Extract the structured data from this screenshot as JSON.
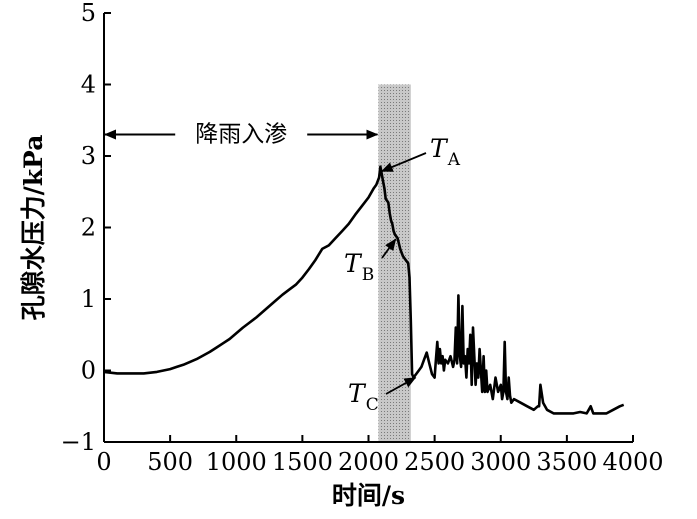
{
  "chart_data": {
    "type": "line",
    "xlabel": "时间/s",
    "ylabel": "孔隙水压力/kPa",
    "xlim": [
      0,
      4000
    ],
    "ylim": [
      -1,
      5
    ],
    "xticks": [
      0,
      500,
      1000,
      1500,
      2000,
      2500,
      3000,
      3500,
      4000
    ],
    "yticks": [
      -1,
      0,
      1,
      2,
      3,
      4,
      5
    ],
    "grid": false,
    "shaded_band": {
      "x": [
        2075,
        2320
      ],
      "color": "#b4b4b4"
    },
    "annotations": {
      "rain_label": "降雨入渗",
      "rain_span": [
        0,
        2075,
        3.3
      ]
    },
    "markers": [
      {
        "main": "T",
        "sub": "A",
        "x": 2085,
        "y": 2.8
      },
      {
        "main": "T",
        "sub": "B",
        "x": 2190,
        "y": 1.85
      },
      {
        "main": "T",
        "sub": "C",
        "x": 2340,
        "y": -0.1
      }
    ],
    "series": [
      {
        "color": "#000000",
        "x": [
          0,
          100,
          200,
          300,
          400,
          500,
          550,
          600,
          650,
          700,
          750,
          800,
          850,
          900,
          950,
          1000,
          1050,
          1100,
          1150,
          1200,
          1250,
          1300,
          1350,
          1400,
          1450,
          1500,
          1550,
          1600,
          1650,
          1700,
          1750,
          1800,
          1850,
          1900,
          1950,
          2000,
          2040,
          2060,
          2080,
          2090,
          2100,
          2110,
          2120,
          2130,
          2150,
          2160,
          2170,
          2180,
          2190,
          2200,
          2220,
          2240,
          2260,
          2280,
          2300,
          2310,
          2320,
          2330,
          2340,
          2360,
          2380,
          2400,
          2420,
          2440,
          2460,
          2480,
          2500,
          2510,
          2520,
          2530,
          2540,
          2550,
          2560,
          2570,
          2580,
          2600,
          2620,
          2640,
          2650,
          2660,
          2670,
          2680,
          2690,
          2700,
          2710,
          2720,
          2730,
          2740,
          2750,
          2760,
          2770,
          2780,
          2790,
          2800,
          2810,
          2820,
          2830,
          2840,
          2850,
          2860,
          2870,
          2880,
          2890,
          2900,
          2920,
          2940,
          2960,
          2980,
          3000,
          3010,
          3020,
          3030,
          3040,
          3050,
          3060,
          3070,
          3080,
          3100,
          3150,
          3200,
          3250,
          3280,
          3290,
          3300,
          3320,
          3350,
          3400,
          3450,
          3500,
          3550,
          3600,
          3650,
          3680,
          3700,
          3750,
          3800,
          3850,
          3900,
          3930
        ],
        "y": [
          -0.02,
          -0.04,
          -0.04,
          -0.04,
          -0.02,
          0.02,
          0.05,
          0.08,
          0.12,
          0.16,
          0.21,
          0.26,
          0.32,
          0.38,
          0.44,
          0.52,
          0.6,
          0.67,
          0.74,
          0.82,
          0.9,
          0.98,
          1.06,
          1.13,
          1.2,
          1.3,
          1.42,
          1.55,
          1.7,
          1.75,
          1.85,
          1.95,
          2.05,
          2.18,
          2.3,
          2.42,
          2.55,
          2.6,
          2.7,
          2.85,
          2.75,
          2.65,
          2.55,
          2.4,
          2.35,
          2.2,
          2.1,
          2.05,
          1.95,
          1.9,
          1.85,
          1.7,
          1.6,
          1.55,
          1.5,
          1.3,
          0.7,
          -0.05,
          -0.1,
          -0.05,
          0.0,
          0.05,
          0.15,
          0.25,
          0.1,
          -0.05,
          -0.1,
          0.15,
          0.4,
          0.1,
          0.3,
          0.1,
          0.2,
          0.0,
          0.15,
          0.1,
          0.2,
          0.05,
          0.15,
          0.6,
          0.1,
          1.05,
          0.2,
          0.05,
          0.9,
          0.1,
          0.2,
          -0.1,
          0.3,
          0.1,
          0.5,
          -0.2,
          0.6,
          0.2,
          -0.2,
          0.1,
          -0.1,
          0.3,
          0.0,
          -0.3,
          0.2,
          -0.3,
          0.0,
          -0.3,
          -0.2,
          -0.4,
          -0.1,
          -0.3,
          -0.2,
          -0.4,
          -0.3,
          0.4,
          -0.3,
          -0.4,
          -0.1,
          -0.35,
          -0.45,
          -0.4,
          -0.45,
          -0.5,
          -0.55,
          -0.5,
          -0.5,
          -0.2,
          -0.45,
          -0.55,
          -0.6,
          -0.6,
          -0.6,
          -0.6,
          -0.58,
          -0.6,
          -0.5,
          -0.6,
          -0.6,
          -0.6,
          -0.55,
          -0.5,
          -0.48
        ]
      }
    ]
  }
}
